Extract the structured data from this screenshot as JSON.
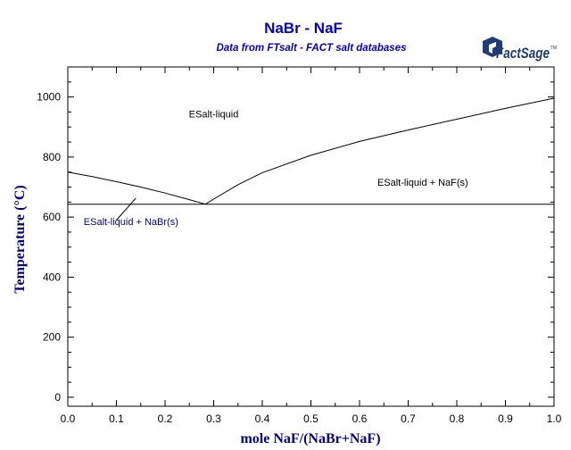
{
  "chart_data": {
    "type": "line",
    "title": "NaBr - NaF",
    "subtitle": "Data from FTsalt - FACT salt databases",
    "xlabel": "mole NaF/(NaBr+NaF)",
    "ylabel": "Temperature (°C)",
    "xlim": [
      0,
      1
    ],
    "ylim": [
      -30,
      1100
    ],
    "x_ticks": [
      0,
      0.1,
      0.2,
      0.3,
      0.4,
      0.5,
      0.6,
      0.7,
      0.8,
      0.9,
      1.0
    ],
    "x_tick_labels": [
      "0.0",
      "0.1",
      "0.2",
      "0.3",
      "0.4",
      "0.5",
      "0.6",
      "0.7",
      "0.8",
      "0.9",
      "1.0"
    ],
    "y_ticks": [
      0,
      200,
      400,
      600,
      800,
      1000
    ],
    "y_tick_labels": [
      "0",
      "200",
      "400",
      "600",
      "800",
      "1000"
    ],
    "grid": false,
    "series": [
      {
        "id": "liquidus-nabr",
        "points": [
          [
            0.0,
            750
          ],
          [
            0.05,
            735
          ],
          [
            0.1,
            718
          ],
          [
            0.15,
            700
          ],
          [
            0.2,
            680
          ],
          [
            0.25,
            658
          ],
          [
            0.283,
            643
          ]
        ]
      },
      {
        "id": "liquidus-naf",
        "points": [
          [
            0.283,
            643
          ],
          [
            0.3,
            660
          ],
          [
            0.35,
            708
          ],
          [
            0.4,
            748
          ],
          [
            0.5,
            806
          ],
          [
            0.6,
            852
          ],
          [
            0.7,
            890
          ],
          [
            0.8,
            926
          ],
          [
            0.9,
            962
          ],
          [
            1.0,
            996
          ]
        ]
      },
      {
        "id": "eutectic-line",
        "points": [
          [
            0.0,
            643
          ],
          [
            1.0,
            643
          ]
        ]
      }
    ],
    "annotations": [
      {
        "text": "ESalt-liquid",
        "x": 0.3,
        "y": 932,
        "color": "#000000"
      },
      {
        "text": "ESalt-liquid + NaF(s)",
        "x": 0.73,
        "y": 705,
        "color": "#000000"
      },
      {
        "text": "ESalt-liquid + NaBr(s)",
        "x": 0.13,
        "y": 573,
        "color": "#000080"
      }
    ],
    "leader_line": {
      "from": [
        0.1,
        590
      ],
      "to": [
        0.14,
        663
      ]
    },
    "colors": {
      "title": "#0000cc",
      "axis_label": "#000080",
      "curve": "#000000",
      "axis": "#000000"
    }
  },
  "logo": {
    "text": "FactSage",
    "mark": "TM"
  }
}
